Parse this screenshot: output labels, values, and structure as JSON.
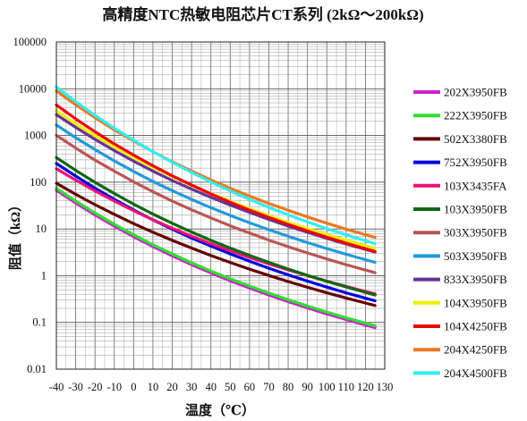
{
  "chart_data": {
    "type": "line",
    "title": "高精度NTC热敏电阻芯片CT系列 (2kΩ～200kΩ)",
    "xlabel": "温度（℃）",
    "ylabel": "阻值（kΩ）",
    "xlim": [
      -40,
      130
    ],
    "ylim": [
      0.01,
      100000
    ],
    "yscale": "log",
    "grid": true,
    "legend_position": "right",
    "x_ticks": [
      -40,
      -30,
      -20,
      -10,
      0,
      10,
      20,
      30,
      40,
      50,
      60,
      70,
      80,
      90,
      100,
      110,
      120,
      130
    ],
    "x_tick_labels": [
      "-40",
      "-30",
      "-20",
      "-10",
      "0",
      "10",
      "20",
      "30",
      "40",
      "50",
      "60",
      "70",
      "80",
      "90",
      "100",
      "110",
      "120",
      "130"
    ],
    "y_ticks": [
      0.01,
      0.1,
      1,
      10,
      100,
      1000,
      10000,
      100000
    ],
    "y_tick_labels": [
      "0.01",
      "0.1",
      "1",
      "10",
      "100",
      "1000",
      "10000",
      "100000"
    ],
    "x": [
      -40,
      -30,
      -20,
      -10,
      0,
      10,
      20,
      30,
      40,
      50,
      60,
      70,
      80,
      90,
      100,
      110,
      120,
      125
    ],
    "series": [
      {
        "name": "202X3950FB",
        "color": "#cc22cc",
        "values": [
          67.2,
          35.9,
          19.9,
          11.5,
          6.8,
          4.2,
          2.65,
          1.72,
          1.15,
          0.78,
          0.545,
          0.385,
          0.278,
          0.204,
          0.152,
          0.115,
          0.088,
          0.077
        ]
      },
      {
        "name": "222X3950FB",
        "color": "#33dd33",
        "values": [
          73.9,
          39.5,
          21.9,
          12.6,
          7.5,
          4.6,
          2.92,
          1.89,
          1.26,
          0.86,
          0.6,
          0.424,
          0.306,
          0.225,
          0.167,
          0.126,
          0.097,
          0.085
        ]
      },
      {
        "name": "502X3380FB",
        "color": "#660000",
        "values": [
          95,
          55,
          33,
          20.5,
          13,
          8.5,
          5.7,
          3.9,
          2.7,
          1.92,
          1.38,
          1.01,
          0.75,
          0.565,
          0.43,
          0.333,
          0.26,
          0.23
        ]
      },
      {
        "name": "752X3950FB",
        "color": "#0000dd",
        "values": [
          252,
          135,
          74.6,
          43,
          25.5,
          15.6,
          9.9,
          6.4,
          4.3,
          2.93,
          2.04,
          1.44,
          1.04,
          0.765,
          0.57,
          0.43,
          0.33,
          0.29
        ]
      },
      {
        "name": "103X3435FA",
        "color": "#ee1177",
        "values": [
          195,
          111,
          65,
          39.5,
          24.5,
          15.8,
          10.4,
          7.0,
          4.85,
          3.42,
          2.45,
          1.79,
          1.33,
          1.0,
          0.765,
          0.59,
          0.46,
          0.41
        ]
      },
      {
        "name": "103X3950FB",
        "color": "#116611",
        "values": [
          336,
          179,
          99.5,
          57.3,
          34,
          20.8,
          13.2,
          8.57,
          5.72,
          3.91,
          2.72,
          1.93,
          1.39,
          1.02,
          0.76,
          0.575,
          0.44,
          0.385
        ]
      },
      {
        "name": "303X3950FB",
        "color": "#bb5555",
        "values": [
          1008,
          538,
          298,
          172,
          102,
          62.5,
          39.5,
          25.7,
          17.2,
          11.7,
          8.16,
          5.78,
          4.17,
          3.06,
          2.28,
          1.72,
          1.32,
          1.16
        ]
      },
      {
        "name": "503X3950FB",
        "color": "#2299dd",
        "values": [
          1680,
          897,
          497,
          286,
          170,
          104,
          66,
          42.8,
          28.6,
          19.5,
          13.6,
          9.64,
          6.95,
          5.1,
          3.8,
          2.87,
          2.2,
          1.93
        ]
      },
      {
        "name": "833X3950FB",
        "color": "#663399",
        "values": [
          2790,
          1490,
          825,
          475,
          282,
          173,
          109,
          71,
          47.5,
          32.4,
          22.6,
          16,
          11.5,
          8.47,
          6.3,
          4.77,
          3.65,
          3.2
        ]
      },
      {
        "name": "104X3950FB",
        "color": "#eeee00",
        "values": [
          3360,
          1790,
          995,
          573,
          340,
          208,
          132,
          85.7,
          57.2,
          39.1,
          27.2,
          19.3,
          13.9,
          10.2,
          7.6,
          5.75,
          4.4,
          3.85
        ]
      },
      {
        "name": "104X4250FB",
        "color": "#ee0000",
        "values": [
          4500,
          2270,
          1200,
          660,
          380,
          225,
          137,
          87,
          56,
          37.2,
          25.3,
          17.6,
          12.5,
          9.05,
          6.65,
          4.97,
          3.77,
          3.3
        ]
      },
      {
        "name": "204X4250FB",
        "color": "#ee7722",
        "values": [
          9000,
          4540,
          2400,
          1320,
          760,
          450,
          274,
          174,
          112,
          74.4,
          50.6,
          35.2,
          25,
          18.1,
          13.3,
          9.94,
          7.54,
          6.6
        ]
      },
      {
        "name": "204X4500FB",
        "color": "#33eeee",
        "values": [
          10900,
          5300,
          2700,
          1430,
          790,
          450,
          266,
          162,
          101,
          65,
          43,
          29,
          20,
          14.2,
          10.2,
          7.5,
          5.6,
          4.85
        ]
      }
    ]
  }
}
